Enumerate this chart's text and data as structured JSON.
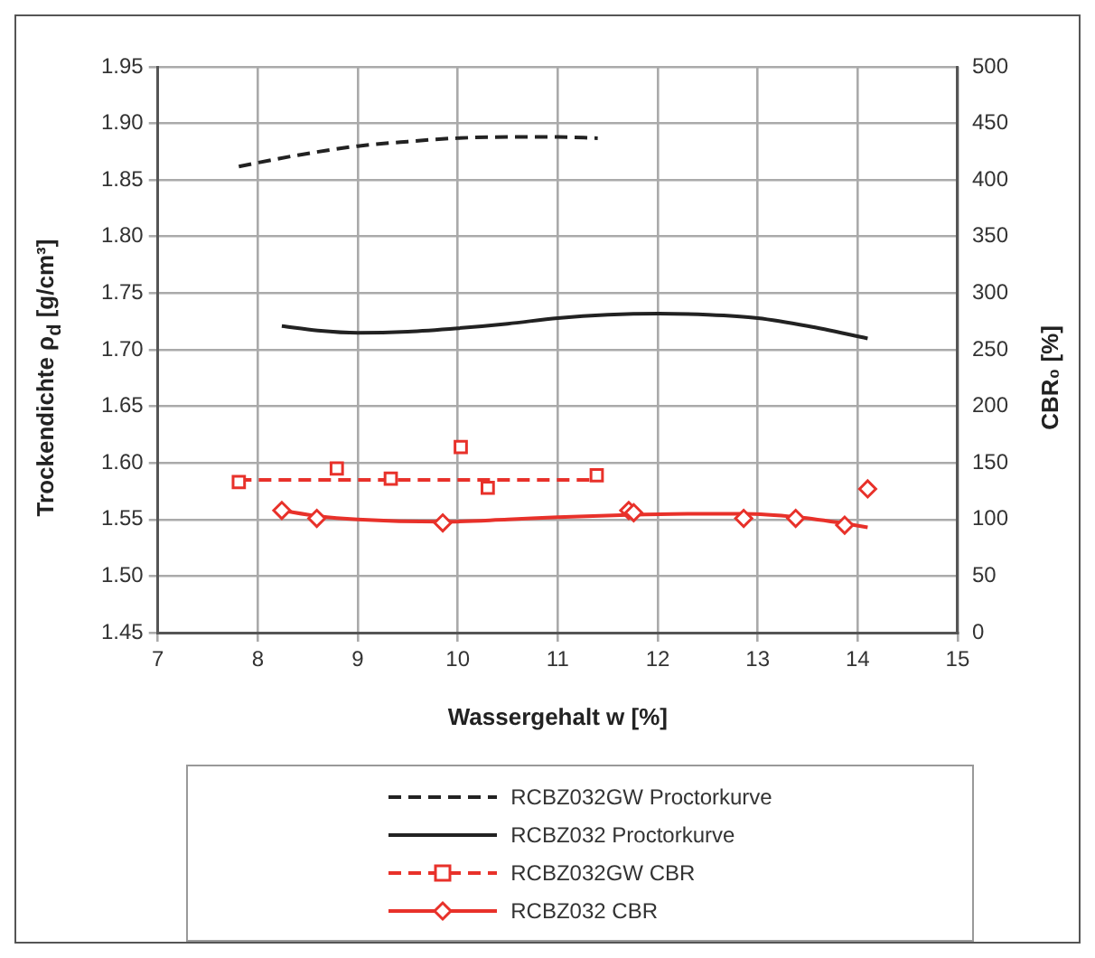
{
  "chart_data": {
    "type": "line",
    "xlabel": "Wassergehalt w [%]",
    "ylabel": "Trockendichte ρ$_{d}$ [g/cm³]",
    "y2label": "CBR₀ [%]",
    "xlim": [
      7,
      15
    ],
    "xticks": [
      7,
      8,
      9,
      10,
      11,
      12,
      13,
      14,
      15
    ],
    "ylim": [
      1.45,
      1.95
    ],
    "yticks": [
      {
        "value": 1.45,
        "label": "1.45"
      },
      {
        "value": 1.5,
        "label": "1.50"
      },
      {
        "value": 1.55,
        "label": "1.55"
      },
      {
        "value": 1.6,
        "label": "1.60"
      },
      {
        "value": 1.65,
        "label": "1.65"
      },
      {
        "value": 1.7,
        "label": "1.70"
      },
      {
        "value": 1.75,
        "label": "1.75"
      },
      {
        "value": 1.8,
        "label": "1.80"
      },
      {
        "value": 1.85,
        "label": "1.85"
      },
      {
        "value": 1.9,
        "label": "1.90"
      },
      {
        "value": 1.95,
        "label": "1.95"
      }
    ],
    "y2lim": [
      0,
      500
    ],
    "y2ticks": [
      0,
      50,
      100,
      150,
      200,
      250,
      300,
      350,
      400,
      450,
      500
    ],
    "grid": true,
    "legend": "bottom",
    "series": [
      {
        "name": "RCBZ032GW Proctorkurve",
        "color": "#222222",
        "line_style": "dashed",
        "marker": "none",
        "x": [
          7.81,
          8.4,
          9.0,
          9.5,
          9.99,
          10.5,
          11.0,
          11.4
        ],
        "values": [
          1.862,
          1.872,
          1.88,
          1.884,
          1.887,
          1.888,
          1.888,
          1.887
        ]
      },
      {
        "name": "RCBZ032 Proctorkurve",
        "color": "#222222",
        "line_style": "solid",
        "marker": "none",
        "x": [
          8.24,
          8.6,
          9.0,
          9.5,
          10.0,
          10.5,
          11.0,
          11.5,
          12.01,
          12.5,
          13.0,
          13.5,
          14.1
        ],
        "values": [
          1.721,
          1.717,
          1.715,
          1.716,
          1.719,
          1.723,
          1.728,
          1.731,
          1.732,
          1.731,
          1.728,
          1.721,
          1.71
        ]
      },
      {
        "name": "RCBZ032GW CBR",
        "type": "scatter",
        "axis": "y2",
        "color": "#e8312a",
        "line_style": "dashed",
        "marker": "square",
        "x": [
          7.81,
          8.79,
          9.33,
          10.03,
          10.3,
          11.39
        ],
        "values": [
          133,
          145,
          136,
          164,
          128,
          139
        ]
      },
      {
        "axis": "y2",
        "color": "#e8312a",
        "line_style": "dashed",
        "marker": "none",
        "x": [
          7.81,
          11.39
        ],
        "values": [
          135,
          135
        ]
      },
      {
        "name": "RCBZ032 CBR",
        "type": "scatter",
        "axis": "y2",
        "color": "#e8312a",
        "line_style": "solid",
        "marker": "diamond",
        "x": [
          8.24,
          8.59,
          9.85,
          11.71,
          11.76,
          12.86,
          13.38,
          13.87,
          14.1
        ],
        "values": [
          108,
          101,
          97,
          108,
          106,
          101,
          101,
          95,
          127
        ]
      },
      {
        "axis": "y2",
        "color": "#e8312a",
        "line_style": "solid",
        "marker": "none",
        "x": [
          8.24,
          8.6,
          9.0,
          9.85,
          10.5,
          11.0,
          11.7,
          12.3,
          12.86,
          13.4,
          13.9,
          14.1
        ],
        "values": [
          108,
          103,
          100,
          98,
          100,
          102,
          104,
          105,
          105,
          102,
          96,
          93
        ]
      }
    ]
  }
}
